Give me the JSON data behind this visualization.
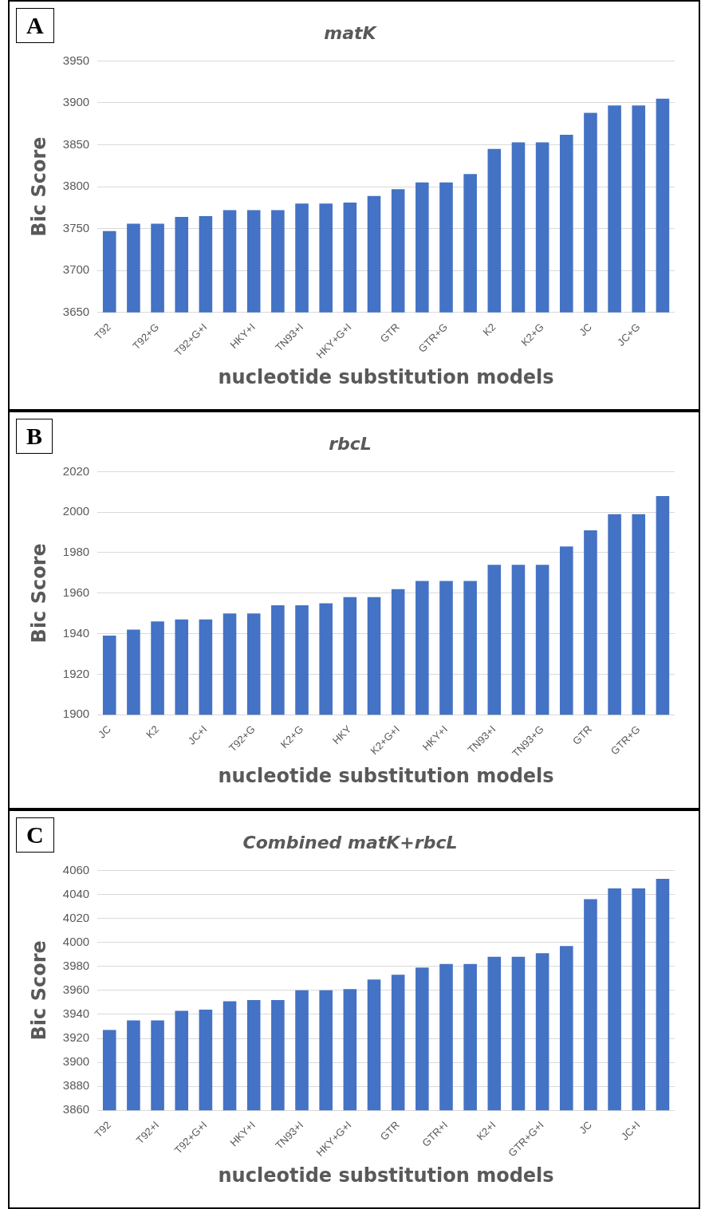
{
  "chart_data": [
    {
      "type": "bar",
      "title": "matK",
      "annotations": [
        "A"
      ],
      "xlabel": "nucleotide substitution models",
      "ylabel": "Bic Score",
      "categories": [
        "T92",
        null,
        "T92+G",
        null,
        "T92+G+I",
        null,
        "HKY+I",
        null,
        "TN93+I",
        null,
        "HKY+G+I",
        null,
        "GTR",
        null,
        "GTR+G",
        null,
        "K2",
        null,
        "K2+G",
        null,
        "JC",
        null,
        "JC+G",
        null
      ],
      "series": [
        {
          "color": "#4472c4",
          "values": [
            3747,
            3756,
            3756,
            3764,
            3765,
            3772,
            3772,
            3772,
            3780,
            3780,
            3781,
            3789,
            3797,
            3805,
            3805,
            3815,
            3845,
            3853,
            3853,
            3862,
            3888,
            3897,
            3897,
            3905
          ]
        }
      ],
      "ylim": [
        3650,
        3950
      ],
      "yticks": [
        3650,
        3700,
        3750,
        3800,
        3850,
        3900,
        3950
      ],
      "grid": "y",
      "legend": false
    },
    {
      "type": "bar",
      "title": "rbcL",
      "annotations": [
        "B"
      ],
      "xlabel": "nucleotide substitution models",
      "ylabel": "Bic Score",
      "categories": [
        "JC",
        null,
        "K2",
        null,
        "JC+I",
        null,
        "T92+G",
        null,
        "K2+G",
        null,
        "HKY",
        null,
        "K2+G+I",
        null,
        "HKY+I",
        null,
        "TN93+I",
        null,
        "TN93+G",
        null,
        "GTR",
        null,
        "GTR+G",
        null
      ],
      "series": [
        {
          "color": "#4472c4",
          "values": [
            1939,
            1942,
            1946,
            1947,
            1947,
            1950,
            1950,
            1954,
            1954,
            1955,
            1958,
            1958,
            1962,
            1966,
            1966,
            1966,
            1974,
            1974,
            1974,
            1983,
            1991,
            1999,
            1999,
            2008
          ]
        }
      ],
      "ylim": [
        1900,
        2020
      ],
      "yticks": [
        1900,
        1920,
        1940,
        1960,
        1980,
        2000,
        2020
      ],
      "grid": "y",
      "legend": false
    },
    {
      "type": "bar",
      "title": "Combined matK+rbcL",
      "annotations": [
        "C"
      ],
      "xlabel": "nucleotide substitution models",
      "ylabel": "Bic Score",
      "categories": [
        "T92",
        null,
        "T92+I",
        null,
        "T92+G+I",
        null,
        "HKY+I",
        null,
        "TN93+I",
        null,
        "HKY+G+I",
        null,
        "GTR",
        null,
        "GTR+I",
        null,
        "K2+I",
        null,
        "GTR+G+I",
        null,
        "JC",
        null,
        "JC+I",
        null
      ],
      "series": [
        {
          "color": "#4472c4",
          "values": [
            3927,
            3935,
            3935,
            3943,
            3944,
            3951,
            3952,
            3952,
            3960,
            3960,
            3961,
            3969,
            3973,
            3979,
            3982,
            3982,
            3988,
            3988,
            3991,
            3997,
            4036,
            4045,
            4045,
            4053
          ]
        }
      ],
      "ylim": [
        3860,
        4060
      ],
      "yticks": [
        3860,
        3880,
        3900,
        3920,
        3940,
        3960,
        3980,
        4000,
        4020,
        4040,
        4060
      ],
      "grid": "y",
      "legend": false
    }
  ]
}
